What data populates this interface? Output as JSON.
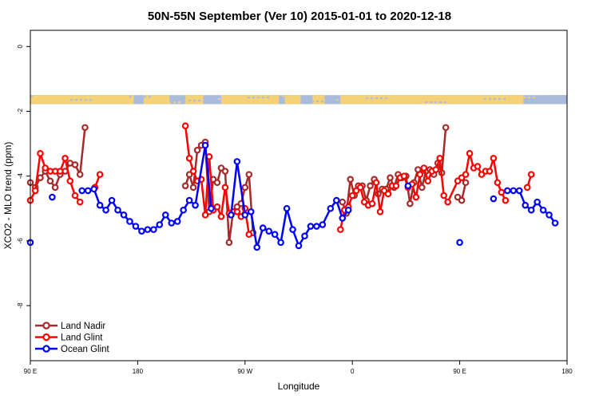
{
  "chart_data": {
    "type": "line",
    "title": "50N-55N September (Ver 10)   2015-01-01 to 2020-12-18",
    "xlabel": "Longitude",
    "ylabel": "XCO2 - MLO trend (ppm)",
    "xlim": [
      -90,
      180
    ],
    "ylim": [
      -9.7,
      0.5
    ],
    "x_ticks": [
      {
        "value": -90,
        "label": "90 E"
      },
      {
        "value": -36,
        "label": "180"
      },
      {
        "value": 18,
        "label": "90 W"
      },
      {
        "value": 72,
        "label": "0"
      },
      {
        "value": 126,
        "label": "90 E"
      },
      {
        "value": 180,
        "label": "180"
      }
    ],
    "y_ticks": [
      {
        "value": 0,
        "label": "0"
      },
      {
        "value": -2,
        "label": "-2"
      },
      {
        "value": -4,
        "label": "-4"
      },
      {
        "value": -6,
        "label": "-6"
      },
      {
        "value": -8,
        "label": "-8"
      }
    ],
    "grid": false,
    "legend_position": "bottom-left",
    "land_mask_band": {
      "y_range": [
        -1.78,
        -1.5
      ],
      "land_color": "#f5d27a",
      "ocean_color": "#a9bcdc"
    },
    "series": [
      {
        "name": "Land Nadir",
        "color": "#a52a2a",
        "points": [
          [
            -90,
            -4.2
          ],
          [
            -87.5,
            -4.35
          ],
          [
            -85,
            -4.05
          ],
          [
            -82.5,
            -3.85
          ],
          [
            -80,
            -4.15
          ],
          [
            -77.5,
            -4.35
          ],
          [
            -75,
            -3.95
          ],
          [
            -72.5,
            -3.85
          ],
          [
            -70,
            -3.6
          ],
          [
            -67.5,
            -3.65
          ],
          [
            -65,
            -3.95
          ],
          [
            -62.5,
            -2.5
          ],
          [
            -12,
            -4.3
          ],
          [
            -10,
            -3.95
          ],
          [
            -8,
            -4.35
          ],
          [
            -6,
            -3.2
          ],
          [
            -4,
            -3.05
          ],
          [
            -2,
            -2.95
          ],
          [
            0,
            -5.1
          ],
          [
            2,
            -4.1
          ],
          [
            4,
            -4.2
          ],
          [
            6,
            -3.75
          ],
          [
            8,
            -3.85
          ],
          [
            10,
            -6.05
          ],
          [
            12,
            -5.1
          ],
          [
            14,
            -4.95
          ],
          [
            16,
            -4.85
          ],
          [
            18,
            -4.35
          ],
          [
            20,
            -3.95
          ],
          [
            22,
            -5.75
          ],
          [
            67,
            -4.8
          ],
          [
            69,
            -5.15
          ],
          [
            71,
            -4.1
          ],
          [
            73,
            -4.6
          ],
          [
            75,
            -4.3
          ],
          [
            77,
            -4.3
          ],
          [
            79,
            -4.75
          ],
          [
            81,
            -4.3
          ],
          [
            83,
            -4.1
          ],
          [
            85,
            -4.55
          ],
          [
            87,
            -4.4
          ],
          [
            89,
            -4.4
          ],
          [
            91,
            -4.05
          ],
          [
            93,
            -4.35
          ],
          [
            95,
            -3.95
          ],
          [
            97,
            -4.05
          ],
          [
            99,
            -4.0
          ],
          [
            101,
            -4.85
          ],
          [
            103,
            -4.2
          ],
          [
            105,
            -3.8
          ],
          [
            107,
            -4.35
          ],
          [
            109,
            -3.85
          ],
          [
            111,
            -3.8
          ],
          [
            113,
            -3.95
          ],
          [
            115,
            -3.6
          ],
          [
            117,
            -3.9
          ],
          [
            119,
            -2.5
          ],
          [
            125,
            -4.65
          ],
          [
            127,
            -4.75
          ],
          [
            129,
            -4.2
          ]
        ]
      },
      {
        "name": "Land Glint",
        "color": "#ff0000",
        "points": [
          [
            -90,
            -4.75
          ],
          [
            -87.5,
            -4.45
          ],
          [
            -85,
            -3.3
          ],
          [
            -82.5,
            -3.75
          ],
          [
            -80,
            -3.85
          ],
          [
            -77.5,
            -3.85
          ],
          [
            -75,
            -3.85
          ],
          [
            -72.5,
            -3.45
          ],
          [
            -70,
            -4.15
          ],
          [
            -67.5,
            -4.6
          ],
          [
            -65,
            -4.8
          ],
          [
            -57.5,
            -4.35
          ],
          [
            -55,
            -3.95
          ],
          [
            -12,
            -2.45
          ],
          [
            -10,
            -3.45
          ],
          [
            -8,
            -3.85
          ],
          [
            -6,
            -4.15
          ],
          [
            -4,
            -4.1
          ],
          [
            -2,
            -5.2
          ],
          [
            0,
            -3.4
          ],
          [
            2,
            -5.05
          ],
          [
            4,
            -4.95
          ],
          [
            6,
            -5.25
          ],
          [
            8,
            -4.35
          ],
          [
            10,
            -5.15
          ],
          [
            12,
            -5.1
          ],
          [
            14,
            -5.1
          ],
          [
            16,
            -5.25
          ],
          [
            18,
            -5.0
          ],
          [
            20,
            -5.8
          ],
          [
            66,
            -5.65
          ],
          [
            68,
            -5.05
          ],
          [
            70,
            -4.95
          ],
          [
            72,
            -4.6
          ],
          [
            74,
            -4.45
          ],
          [
            76,
            -4.35
          ],
          [
            78,
            -4.8
          ],
          [
            80,
            -4.9
          ],
          [
            82,
            -4.85
          ],
          [
            84,
            -4.2
          ],
          [
            86,
            -5.1
          ],
          [
            88,
            -4.45
          ],
          [
            90,
            -4.55
          ],
          [
            92,
            -4.3
          ],
          [
            94,
            -4.3
          ],
          [
            96,
            -4.05
          ],
          [
            98,
            -4.0
          ],
          [
            100,
            -4.35
          ],
          [
            102,
            -4.25
          ],
          [
            104,
            -4.65
          ],
          [
            106,
            -3.95
          ],
          [
            108,
            -3.75
          ],
          [
            110,
            -4.15
          ],
          [
            112,
            -3.85
          ],
          [
            114,
            -3.8
          ],
          [
            116,
            -3.45
          ],
          [
            118,
            -4.6
          ],
          [
            120,
            -4.8
          ],
          [
            125,
            -4.15
          ],
          [
            127,
            -4.05
          ],
          [
            129,
            -3.95
          ],
          [
            131,
            -3.3
          ],
          [
            133,
            -3.75
          ],
          [
            135,
            -3.7
          ],
          [
            137,
            -3.95
          ],
          [
            139,
            -3.85
          ],
          [
            141,
            -3.85
          ],
          [
            143,
            -3.45
          ],
          [
            145,
            -4.2
          ],
          [
            147,
            -4.5
          ],
          [
            149,
            -4.75
          ],
          [
            160,
            -4.35
          ],
          [
            162,
            -3.95
          ]
        ]
      },
      {
        "name": "Ocean Glint",
        "color": "#0000ff",
        "points": [
          [
            -90,
            -6.05
          ],
          [
            -79,
            -4.65
          ],
          [
            -64,
            -4.45
          ],
          [
            -61,
            -4.45
          ],
          [
            -58,
            -4.4
          ],
          [
            -55,
            -4.9
          ],
          [
            -52,
            -5.05
          ],
          [
            -49,
            -4.75
          ],
          [
            -46,
            -5.05
          ],
          [
            -43,
            -5.2
          ],
          [
            -40,
            -5.4
          ],
          [
            -37,
            -5.55
          ],
          [
            -34,
            -5.7
          ],
          [
            -31,
            -5.65
          ],
          [
            -28,
            -5.65
          ],
          [
            -25,
            -5.5
          ],
          [
            -22,
            -5.2
          ],
          [
            -19,
            -5.45
          ],
          [
            -16,
            -5.4
          ],
          [
            -13,
            -5.05
          ],
          [
            -10,
            -4.75
          ],
          [
            -7,
            -4.9
          ],
          [
            -2,
            -3.05
          ],
          [
            1,
            -5.0
          ],
          [
            11,
            -5.2
          ],
          [
            14,
            -3.55
          ],
          [
            18,
            -5.2
          ],
          [
            21,
            -5.1
          ],
          [
            24,
            -6.2
          ],
          [
            27,
            -5.6
          ],
          [
            30,
            -5.7
          ],
          [
            33,
            -5.8
          ],
          [
            36,
            -6.05
          ],
          [
            39,
            -5.0
          ],
          [
            42,
            -5.65
          ],
          [
            45,
            -6.15
          ],
          [
            48,
            -5.85
          ],
          [
            51,
            -5.55
          ],
          [
            54,
            -5.55
          ],
          [
            57,
            -5.5
          ],
          [
            61,
            -5.0
          ],
          [
            64,
            -4.75
          ],
          [
            67,
            -5.3
          ],
          [
            70,
            -5.05
          ],
          [
            100,
            -4.3
          ],
          [
            126,
            -6.05
          ],
          [
            143,
            -4.7
          ],
          [
            150,
            -4.45
          ],
          [
            153,
            -4.45
          ],
          [
            156,
            -4.45
          ],
          [
            159,
            -4.9
          ],
          [
            162,
            -5.05
          ],
          [
            165,
            -4.8
          ],
          [
            168,
            -5.05
          ],
          [
            171,
            -5.2
          ],
          [
            174,
            -5.45
          ]
        ]
      }
    ]
  }
}
